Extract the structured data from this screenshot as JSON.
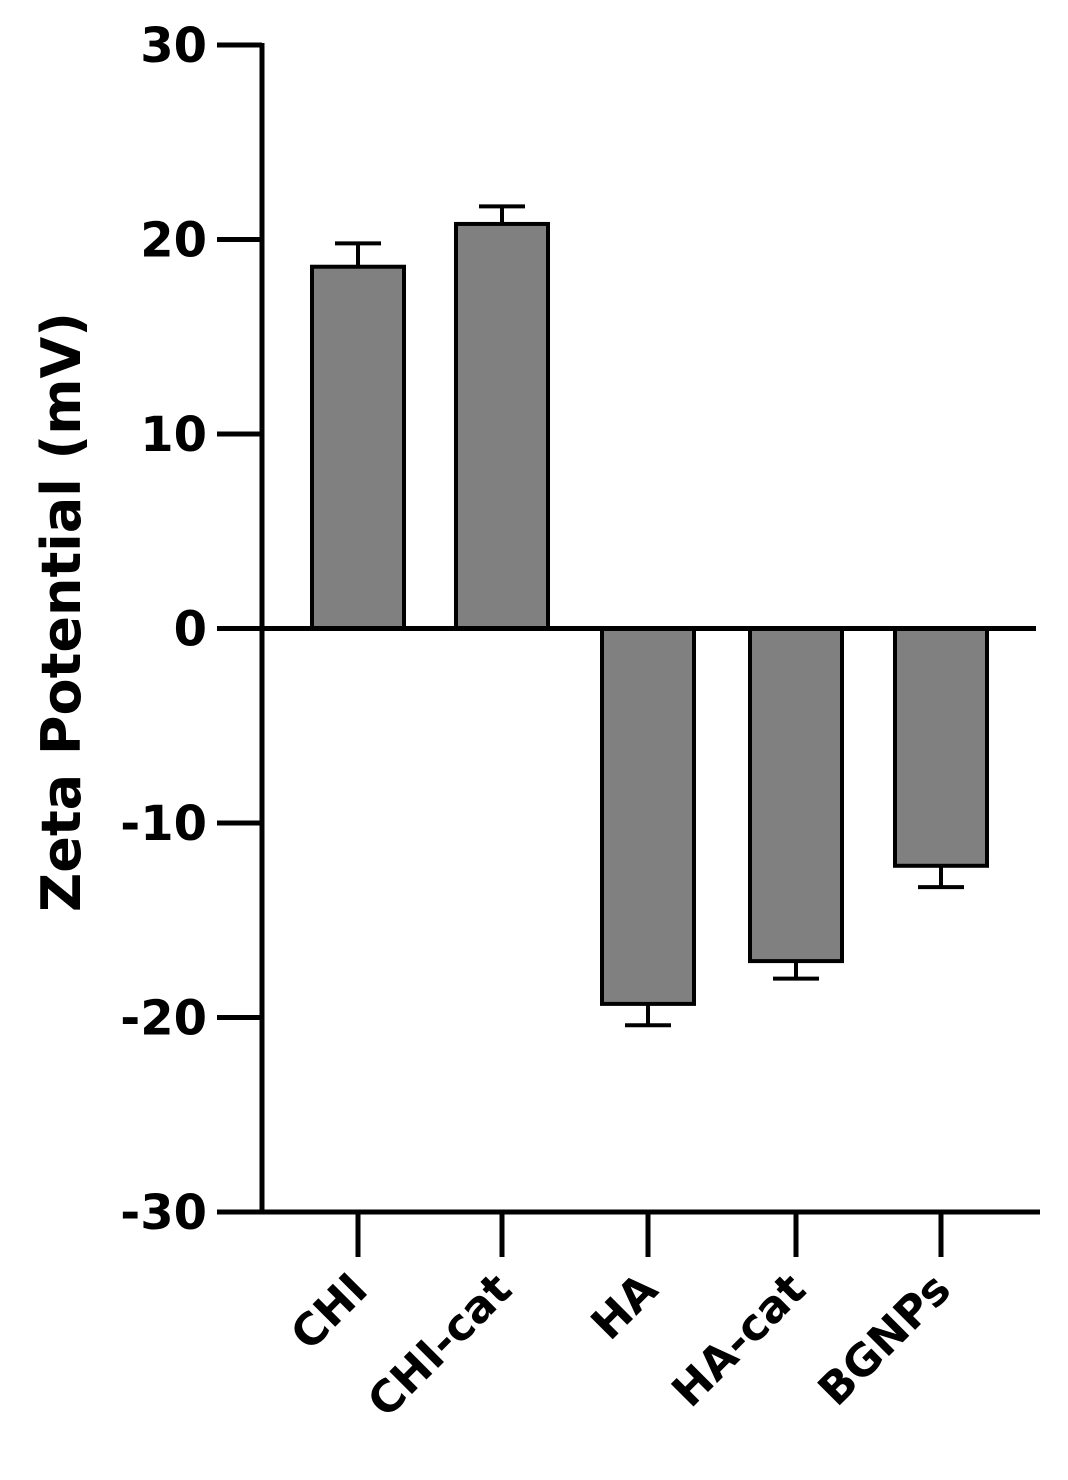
{
  "chart_data": {
    "type": "bar",
    "title": "",
    "xlabel": "",
    "ylabel": "Zeta Potential (mV)",
    "ylim": [
      -30,
      30
    ],
    "yticks": [
      30,
      20,
      10,
      0,
      -10,
      -20,
      -30
    ],
    "ytick_labels": [
      "30",
      "20",
      "10",
      "0",
      "-10",
      "-20",
      "-30"
    ],
    "categories": [
      "CHI",
      "CHI-cat",
      "HA",
      "HA-cat",
      "BGNPs"
    ],
    "values": [
      18.6,
      20.8,
      -19.3,
      -17.1,
      -12.2
    ],
    "errors": [
      1.2,
      0.9,
      1.1,
      0.9,
      1.1
    ],
    "bar_color": "#808080",
    "grid": false,
    "legend": "none"
  }
}
